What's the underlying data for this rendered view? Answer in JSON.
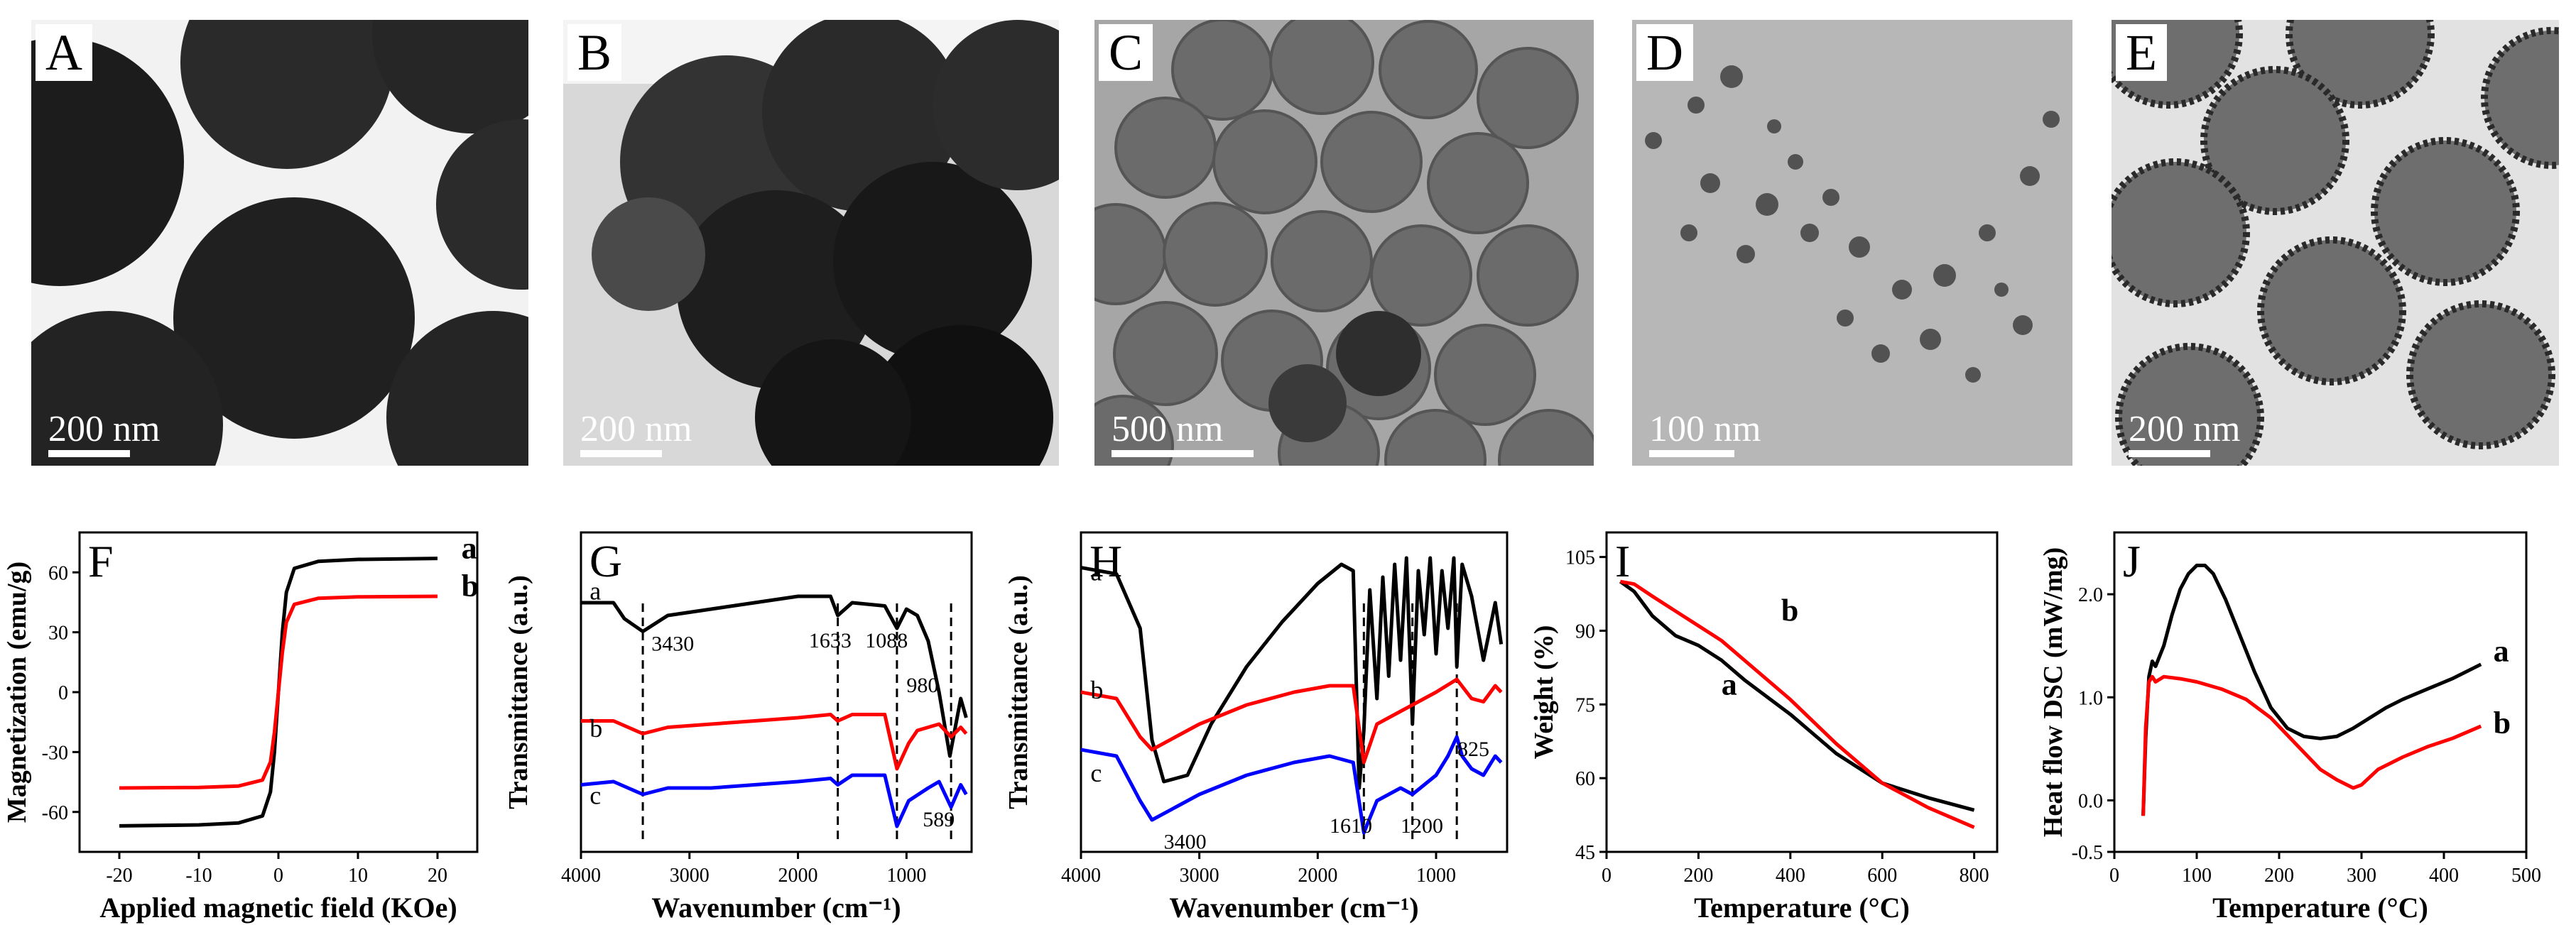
{
  "tem_panels": [
    {
      "label": "A",
      "scale": "200 nm"
    },
    {
      "label": "B",
      "scale": "200 nm"
    },
    {
      "label": "C",
      "scale": "500 nm"
    },
    {
      "label": "D",
      "scale": "100 nm"
    },
    {
      "label": "E",
      "scale": "200 nm"
    }
  ],
  "chart_data": [
    {
      "panel": "F",
      "type": "line",
      "xlabel": "Applied magnetic field (KOe)",
      "ylabel": "Magnetization (emu/g)",
      "xlim": [
        -25,
        25
      ],
      "ylim": [
        -80,
        80
      ],
      "xticks": [
        "-20",
        "-10",
        "0",
        "10",
        "20"
      ],
      "yticks": [
        "-60",
        "-30",
        "0",
        "30",
        "60"
      ],
      "series": [
        {
          "name": "a",
          "color": "#000000",
          "x": [
            -20,
            -10,
            -5,
            -2,
            -1,
            -0.5,
            0,
            0.5,
            1,
            2,
            5,
            10,
            20
          ],
          "y": [
            -67,
            -66.5,
            -65.5,
            -62,
            -50,
            -30,
            0,
            30,
            50,
            62,
            65.5,
            66.5,
            67
          ]
        },
        {
          "name": "b",
          "color": "#ff0000",
          "x": [
            -20,
            -10,
            -5,
            -2,
            -1,
            -0.5,
            0,
            0.5,
            1,
            2,
            5,
            10,
            20
          ],
          "y": [
            -48,
            -47.7,
            -47,
            -44,
            -35,
            -20,
            0,
            20,
            35,
            44,
            47,
            47.7,
            48
          ]
        }
      ]
    },
    {
      "panel": "G",
      "type": "line",
      "xlabel": "Wavenumber (cm⁻¹)",
      "ylabel": "Transmittance (a.u.)",
      "xlim": [
        4000,
        400
      ],
      "ylim": [
        0,
        100
      ],
      "xticks": [
        "4000",
        "3000",
        "2000",
        "1000"
      ],
      "annotations": [
        "3430",
        "1633",
        "1088",
        "980",
        "589"
      ],
      "series_labels": [
        "a",
        "b",
        "c"
      ],
      "dashed_lines_x": [
        3430,
        1633,
        1088,
        589
      ],
      "series": [
        {
          "name": "a",
          "color": "#000000",
          "x": [
            4000,
            3700,
            3600,
            3430,
            3200,
            2800,
            2400,
            2000,
            1700,
            1633,
            1500,
            1200,
            1088,
            1000,
            900,
            800,
            700,
            600,
            589,
            500,
            450
          ],
          "y": [
            78,
            78,
            73,
            69,
            74,
            76,
            78,
            80,
            80,
            74,
            78,
            77,
            70,
            76,
            74,
            66,
            50,
            30,
            32,
            48,
            42
          ]
        },
        {
          "name": "b",
          "color": "#ff0000",
          "x": [
            4000,
            3700,
            3430,
            3200,
            2800,
            2400,
            2000,
            1700,
            1633,
            1500,
            1200,
            1088,
            980,
            900,
            700,
            589,
            500,
            450
          ],
          "y": [
            41,
            41,
            37,
            39,
            40,
            41,
            42,
            43,
            41,
            43,
            43,
            26,
            34,
            38,
            40,
            36,
            39,
            37
          ]
        },
        {
          "name": "c",
          "color": "#0000ff",
          "x": [
            4000,
            3700,
            3430,
            3200,
            2800,
            2400,
            2000,
            1700,
            1633,
            1500,
            1200,
            1088,
            980,
            800,
            700,
            589,
            500,
            450
          ],
          "y": [
            21,
            22,
            18,
            20,
            20,
            21,
            22,
            23,
            21,
            24,
            24,
            8,
            16,
            20,
            22,
            14,
            21,
            18
          ]
        }
      ]
    },
    {
      "panel": "H",
      "type": "line",
      "xlabel": "Wavenumber (cm⁻¹)",
      "ylabel": "Transmittance (a.u.)",
      "xlim": [
        4000,
        400
      ],
      "ylim": [
        0,
        100
      ],
      "xticks": [
        "4000",
        "3000",
        "2000",
        "1000"
      ],
      "annotations": [
        "3400",
        "1610",
        "1200",
        "825"
      ],
      "series_labels": [
        "a",
        "b",
        "c"
      ],
      "dashed_lines_x": [
        1610,
        1200,
        825
      ],
      "series": [
        {
          "name": "a",
          "color": "#000000",
          "x": [
            4000,
            3700,
            3500,
            3400,
            3300,
            3100,
            2900,
            2600,
            2300,
            2000,
            1800,
            1700,
            1650,
            1610,
            1560,
            1500,
            1450,
            1400,
            1350,
            1300,
            1250,
            1200,
            1150,
            1100,
            1050,
            1000,
            950,
            900,
            850,
            825,
            780,
            700,
            600,
            500,
            450
          ],
          "y": [
            89,
            87,
            70,
            35,
            22,
            24,
            40,
            58,
            72,
            84,
            90,
            88,
            20,
            38,
            82,
            48,
            86,
            55,
            90,
            60,
            92,
            40,
            88,
            68,
            92,
            62,
            88,
            70,
            92,
            58,
            90,
            80,
            60,
            78,
            65
          ]
        },
        {
          "name": "b",
          "color": "#ff0000",
          "x": [
            4000,
            3700,
            3500,
            3400,
            3200,
            3000,
            2600,
            2200,
            1900,
            1700,
            1610,
            1500,
            1300,
            1200,
            1000,
            825,
            700,
            600,
            500,
            450
          ],
          "y": [
            50,
            48,
            36,
            32,
            36,
            40,
            46,
            50,
            52,
            52,
            28,
            40,
            44,
            46,
            50,
            54,
            48,
            47,
            52,
            50
          ]
        },
        {
          "name": "c",
          "color": "#0000ff",
          "x": [
            4000,
            3700,
            3500,
            3400,
            3200,
            3000,
            2600,
            2200,
            1900,
            1700,
            1610,
            1500,
            1300,
            1200,
            1000,
            900,
            825,
            780,
            700,
            600,
            500,
            450
          ],
          "y": [
            32,
            30,
            16,
            10,
            14,
            18,
            24,
            28,
            30,
            28,
            6,
            16,
            20,
            18,
            24,
            30,
            36,
            30,
            26,
            24,
            30,
            28
          ]
        }
      ]
    },
    {
      "panel": "I",
      "type": "line",
      "xlabel": "Temperature (°C)",
      "ylabel": "Weight (%)",
      "xlim": [
        0,
        850
      ],
      "ylim": [
        45,
        110
      ],
      "xticks": [
        "0",
        "200",
        "400",
        "600",
        "800"
      ],
      "yticks": [
        "45",
        "60",
        "75",
        "90",
        "105"
      ],
      "series": [
        {
          "name": "a",
          "color": "#000000",
          "x": [
            30,
            60,
            100,
            150,
            200,
            250,
            300,
            400,
            500,
            600,
            700,
            800
          ],
          "y": [
            100,
            98,
            93,
            89,
            87,
            84,
            80,
            73,
            65,
            59,
            56,
            53.5
          ]
        },
        {
          "name": "b",
          "color": "#ff0000",
          "x": [
            30,
            60,
            100,
            150,
            200,
            250,
            300,
            400,
            500,
            600,
            700,
            800
          ],
          "y": [
            100,
            99.5,
            97,
            94,
            91,
            88,
            84,
            76,
            67,
            59,
            54,
            50
          ]
        }
      ]
    },
    {
      "panel": "J",
      "type": "line",
      "xlabel": "Temperature (°C)",
      "ylabel": "Heat flow DSC (mW/mg)",
      "xlim": [
        0,
        500
      ],
      "ylim": [
        -0.5,
        2.6
      ],
      "xticks": [
        "0",
        "100",
        "200",
        "300",
        "400",
        "500"
      ],
      "yticks": [
        "-0.5",
        "0.0",
        "1.0",
        "2.0"
      ],
      "series": [
        {
          "name": "a",
          "color": "#000000",
          "x": [
            35,
            38,
            42,
            46,
            50,
            60,
            70,
            80,
            90,
            100,
            110,
            120,
            135,
            150,
            170,
            190,
            210,
            230,
            250,
            270,
            290,
            310,
            330,
            350,
            380,
            410,
            445
          ],
          "y": [
            -0.15,
            0.6,
            1.2,
            1.35,
            1.3,
            1.5,
            1.8,
            2.05,
            2.2,
            2.28,
            2.28,
            2.2,
            1.95,
            1.65,
            1.25,
            0.9,
            0.7,
            0.62,
            0.6,
            0.62,
            0.7,
            0.8,
            0.9,
            0.98,
            1.08,
            1.18,
            1.32
          ]
        },
        {
          "name": "b",
          "color": "#ff0000",
          "x": [
            35,
            38,
            42,
            46,
            50,
            60,
            80,
            100,
            130,
            160,
            190,
            220,
            250,
            270,
            290,
            300,
            320,
            350,
            380,
            410,
            445
          ],
          "y": [
            -0.15,
            0.7,
            1.15,
            1.2,
            1.15,
            1.2,
            1.18,
            1.15,
            1.08,
            0.98,
            0.8,
            0.55,
            0.3,
            0.2,
            0.12,
            0.15,
            0.3,
            0.42,
            0.52,
            0.6,
            0.72
          ]
        }
      ]
    }
  ]
}
